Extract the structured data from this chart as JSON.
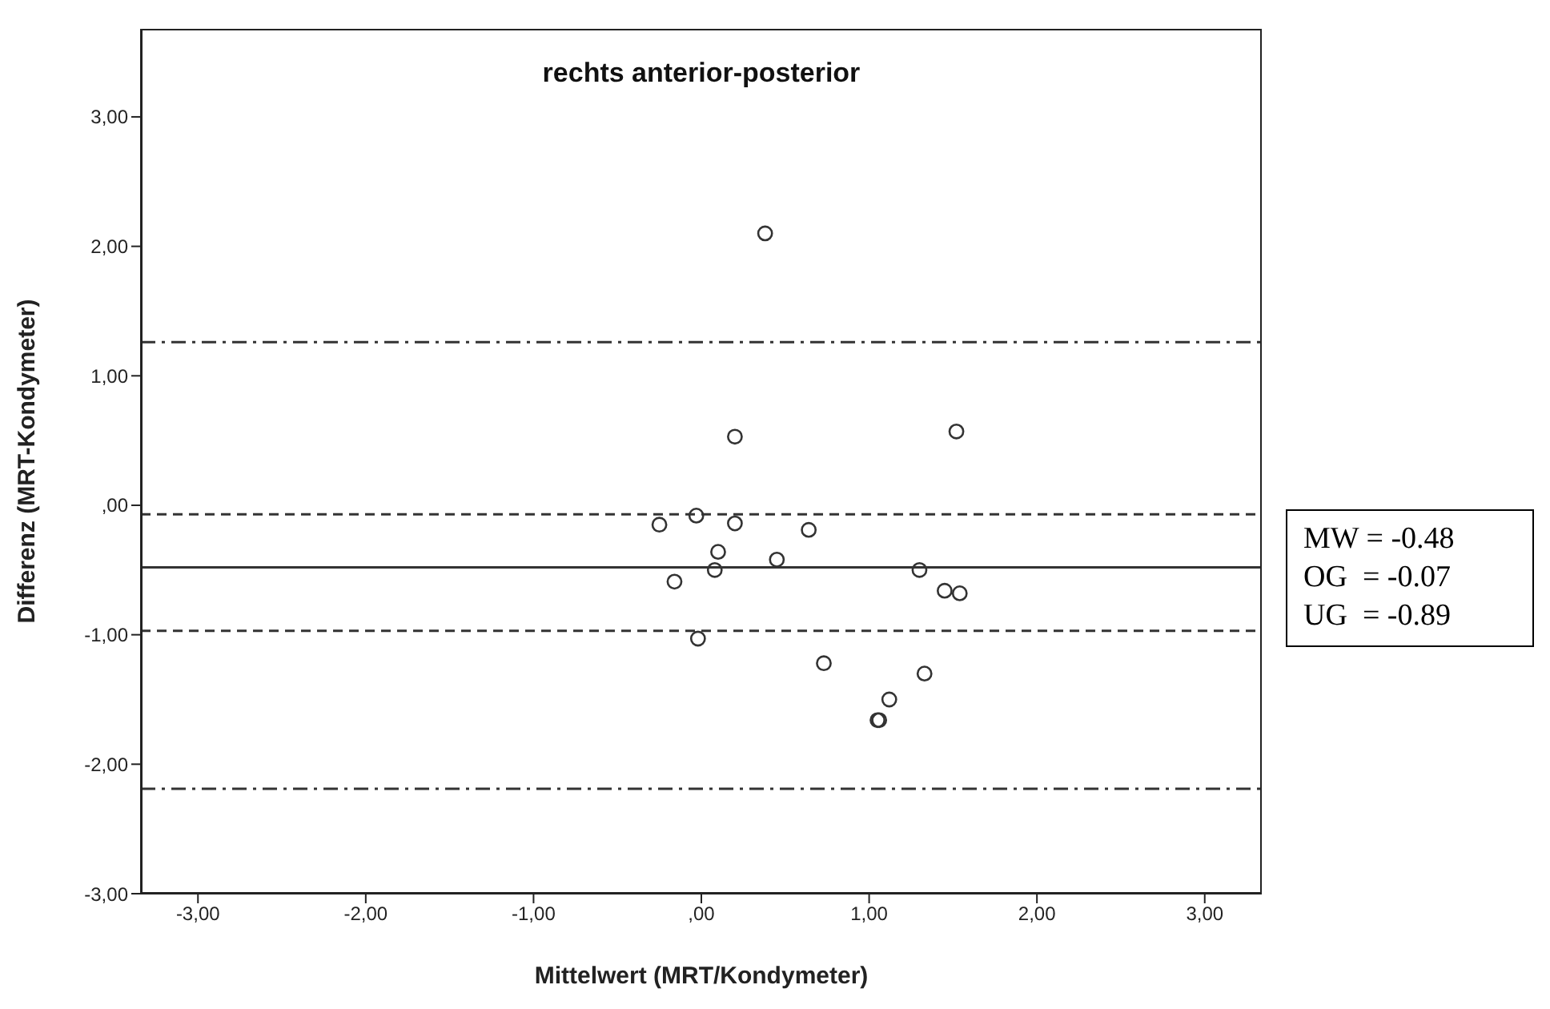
{
  "chart_data": {
    "type": "scatter",
    "title": "rechts anterior-posterior",
    "xlabel": "Mittelwert (MRT/Kondymeter)",
    "ylabel": "Differenz (MRT-Kondymeter)",
    "x": [
      0.38,
      0.2,
      1.52,
      -0.25,
      -0.03,
      0.2,
      0.64,
      0.1,
      0.45,
      0.08,
      -0.16,
      1.3,
      1.45,
      1.54,
      -0.02,
      0.73,
      1.33,
      1.12,
      1.05,
      1.06
    ],
    "values": [
      2.1,
      0.53,
      0.57,
      -0.15,
      -0.08,
      -0.14,
      -0.19,
      -0.36,
      -0.42,
      -0.5,
      -0.59,
      -0.5,
      -0.66,
      -0.68,
      -1.03,
      -1.22,
      -1.3,
      -1.5,
      -1.66,
      -1.66
    ],
    "color": "#333333",
    "marker": "circle",
    "grid": false,
    "legend": false,
    "xlim": [
      -3.34,
      3.34
    ],
    "ylim": [
      -3,
      3.68
    ],
    "xticks": [
      {
        "value": -3,
        "label": "-3,00"
      },
      {
        "value": -2,
        "label": "-2,00"
      },
      {
        "value": -1,
        "label": "-1,00"
      },
      {
        "value": 0,
        "label": ",00"
      },
      {
        "value": 1,
        "label": "1,00"
      },
      {
        "value": 2,
        "label": "2,00"
      },
      {
        "value": 3,
        "label": "3,00"
      }
    ],
    "yticks": [
      {
        "value": -3,
        "label": "-3,00"
      },
      {
        "value": -2,
        "label": "-2,00"
      },
      {
        "value": -1,
        "label": "-1,00"
      },
      {
        "value": 0,
        "label": ",00"
      },
      {
        "value": 1,
        "label": "1,00"
      },
      {
        "value": 2,
        "label": "2,00"
      },
      {
        "value": 3,
        "label": "3,00"
      }
    ],
    "ref_lines": [
      {
        "axis": "y",
        "value": -0.48,
        "line_style": "solid",
        "color": "#333333"
      },
      {
        "axis": "y",
        "value": -0.07,
        "line_style": "dashed",
        "color": "#333333"
      },
      {
        "axis": "y",
        "value": -0.97,
        "line_style": "dashed",
        "color": "#333333"
      },
      {
        "axis": "y",
        "value": 1.26,
        "line_style": "dashdot",
        "color": "#333333"
      },
      {
        "axis": "y",
        "value": -2.19,
        "line_style": "dashdot",
        "color": "#333333"
      }
    ],
    "annotations": [
      "MW = -0.48",
      "OG  = -0.07",
      "UG  = -0.89"
    ]
  }
}
